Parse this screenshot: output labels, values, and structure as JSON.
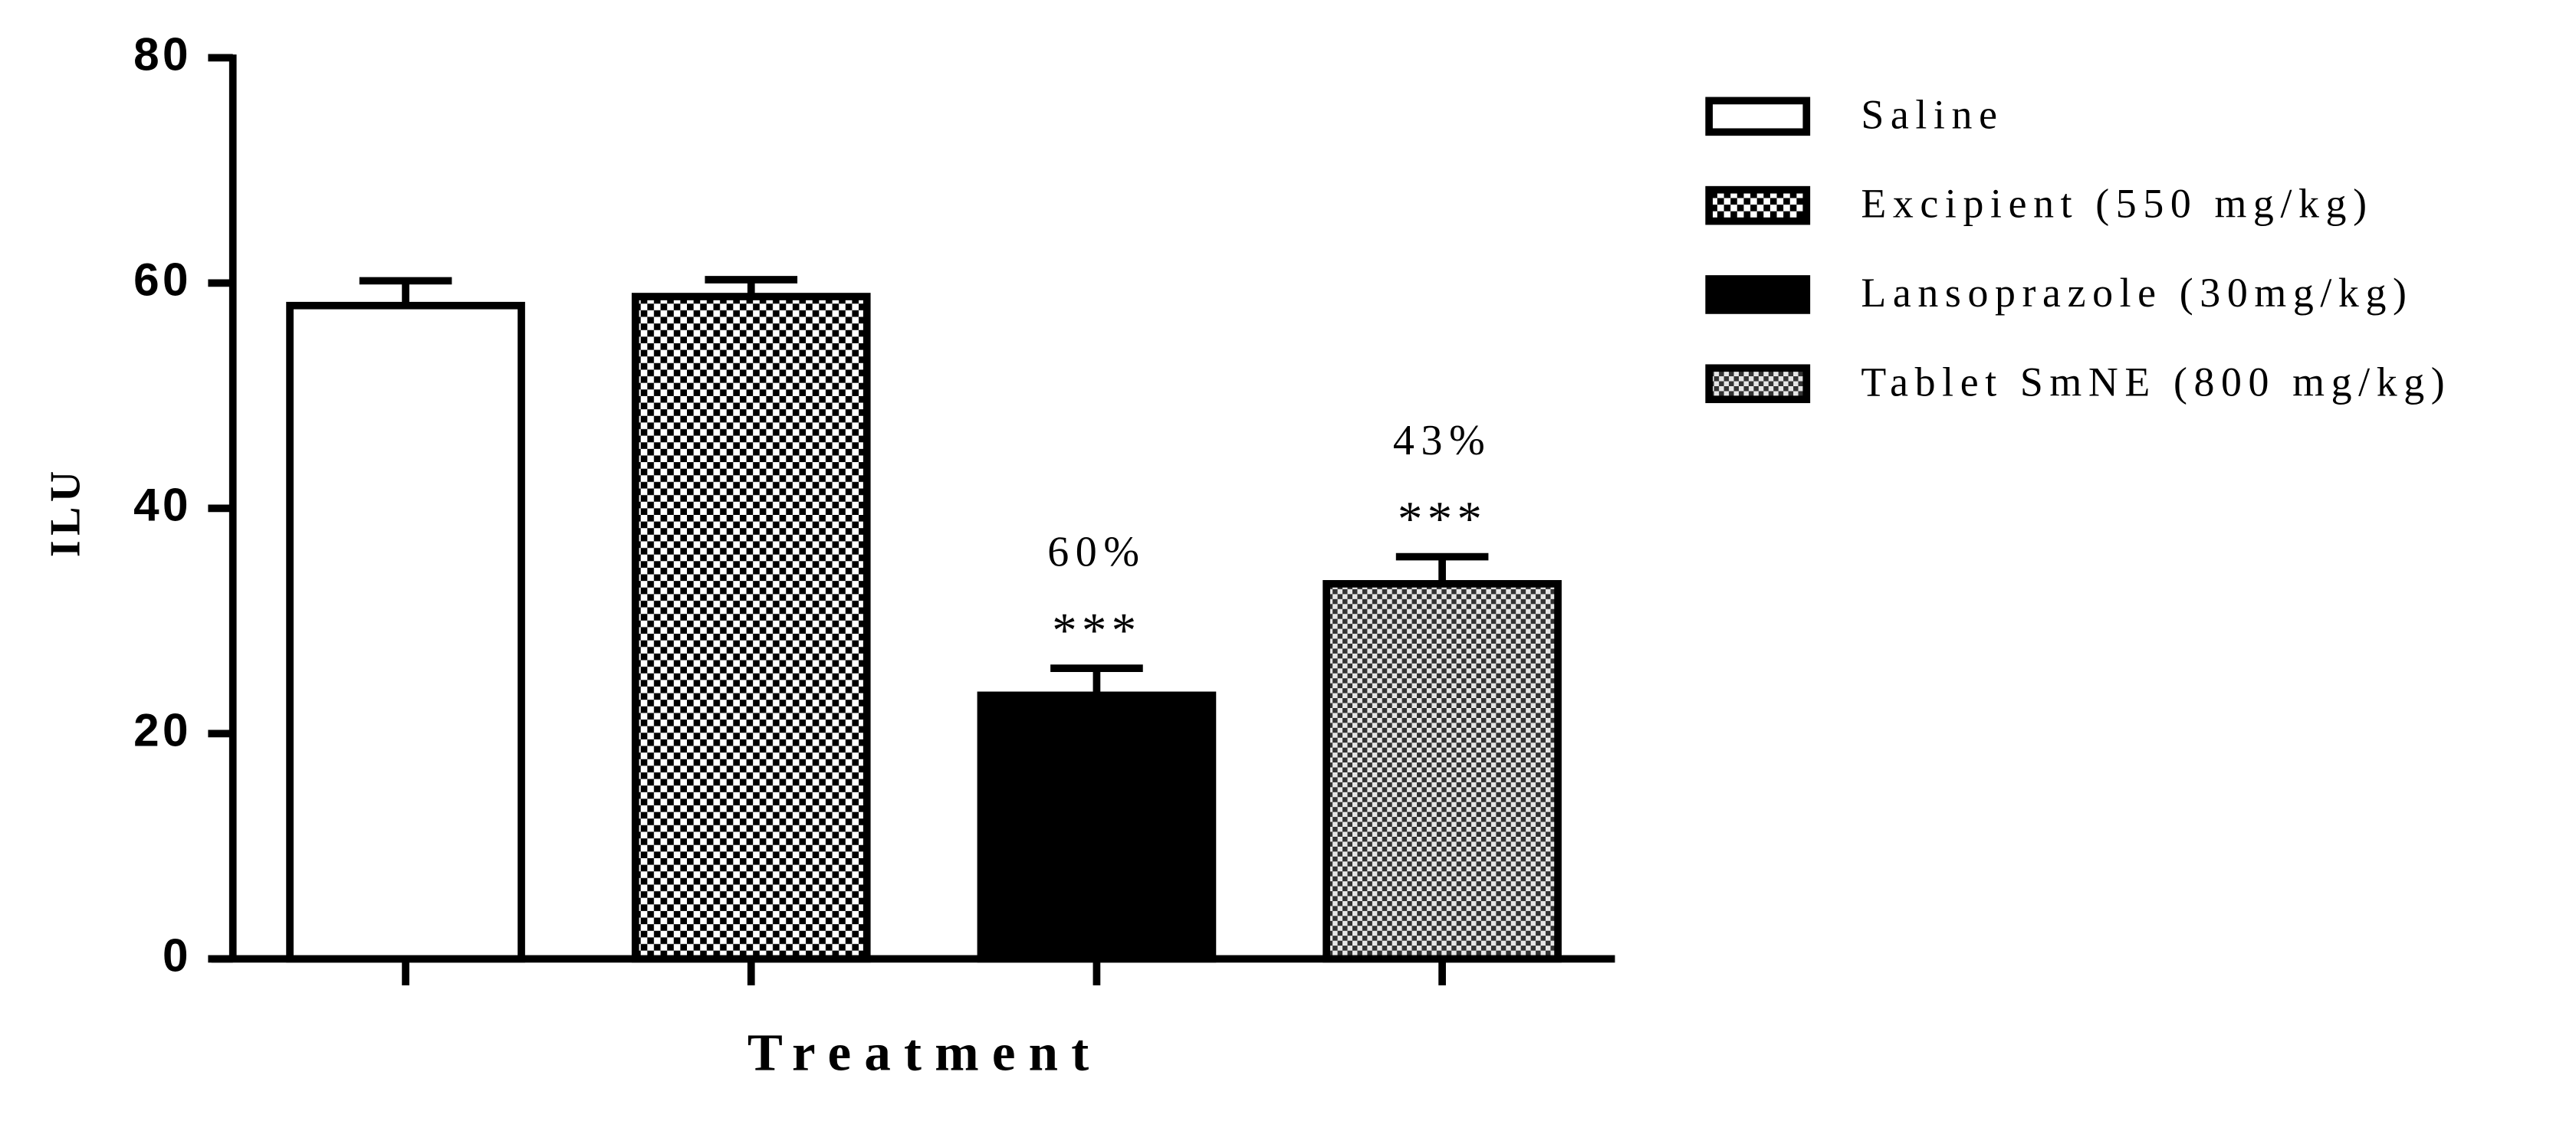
{
  "chart_data": {
    "type": "bar",
    "y_label": "ILU",
    "x_label": "Treatment",
    "categories": [
      null,
      null,
      null,
      null
    ],
    "ylim": [
      0,
      80
    ],
    "yticks": [
      0,
      20,
      40,
      60,
      80
    ],
    "series": [
      {
        "name": "Saline",
        "fill": "white",
        "values": [
          58,
          null,
          null,
          null
        ],
        "errors": [
          2.2,
          null,
          null,
          null
        ]
      },
      {
        "name": "Excipient (550 mg/kg)",
        "fill": "checker",
        "values": [
          null,
          58.8,
          null,
          null
        ],
        "errors": [
          null,
          1.5,
          null,
          null
        ]
      },
      {
        "name": "Lansoprazole (30mg/kg)",
        "fill": "black",
        "values": [
          null,
          null,
          23.4,
          null
        ],
        "errors": [
          null,
          null,
          2.4,
          null
        ],
        "significance": "***",
        "reduction": "60%"
      },
      {
        "name": "Tablet SmNE (800 mg/kg)",
        "fill": "gray-checker",
        "values": [
          null,
          null,
          null,
          33.3
        ],
        "errors": [
          null,
          null,
          null,
          2.4
        ],
        "significance": "***",
        "reduction": "43%"
      }
    ]
  }
}
